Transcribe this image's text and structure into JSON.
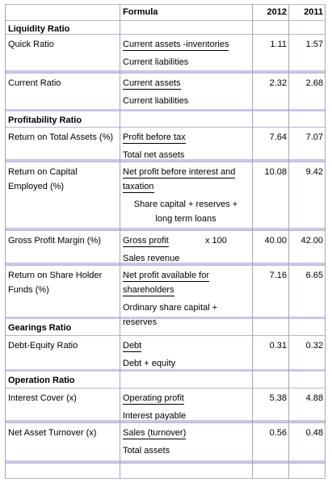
{
  "header": {
    "formula": "Formula",
    "years": [
      "2012",
      "2011"
    ]
  },
  "sections": [
    {
      "title": "Liquidity Ratio",
      "rows": [
        {
          "label": "Quick Ratio",
          "numerator": "Current assets -inventories",
          "denominator": "Current liabilities",
          "values": [
            "1.11",
            "1.57"
          ]
        },
        {
          "label": "Current Ratio",
          "numerator": "Current assets",
          "denominator": "Current liabilities",
          "values": [
            "2.32",
            "2.68"
          ]
        }
      ]
    },
    {
      "title": "Profitability Ratio",
      "rows": [
        {
          "label": "Return on Total Assets (%)",
          "numerator": "Profit before tax",
          "denominator": "Total net assets",
          "values": [
            "7.64",
            "7.07"
          ]
        },
        {
          "label": "Return on Capital Employed (%)",
          "numerator": "Net profit before interest and taxation",
          "denominator": "Share capital + reserves + long term loans",
          "values": [
            "10.08",
            "9.42"
          ]
        },
        {
          "label": "Gross Profit Margin (%)",
          "numerator": "Gross profit",
          "multiplier": "x 100",
          "denominator": "Sales revenue",
          "values": [
            "40.00",
            "42.00"
          ]
        },
        {
          "label": "Return on Share Holder Funds (%)",
          "numerator": "Net profit available for shareholders",
          "denominator": "Ordinary share capital + reserves",
          "values": [
            "7.16",
            "6.65"
          ]
        }
      ]
    },
    {
      "title": "Gearings Ratio",
      "rows": [
        {
          "label": "Debt-Equity Ratio",
          "numerator": "Debt",
          "denominator": "Debt + equity",
          "values": [
            "0.31",
            "0.32"
          ]
        }
      ]
    },
    {
      "title": "Operation Ratio",
      "rows": [
        {
          "label": "Interest Cover (x)",
          "numerator": "Operating profit",
          "denominator": "Interest payable",
          "values": [
            "5.38",
            "4.88"
          ]
        },
        {
          "label": "Net Asset Turnover (x)",
          "numerator": "Sales (turnover)",
          "denominator": "Total assets",
          "values": [
            "0.56",
            "0.48"
          ]
        }
      ]
    }
  ]
}
